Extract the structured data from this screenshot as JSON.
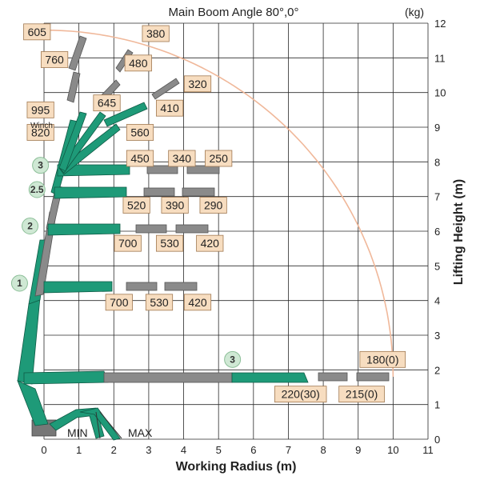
{
  "chart_data": {
    "type": "table",
    "title": "Main Boom Angle 80°,0°",
    "unit": "(kg)",
    "xlabel": "Working Radius (m)",
    "ylabel": "Lifting Height (m)",
    "xlim": [
      0,
      11
    ],
    "ylim": [
      0,
      12
    ],
    "x_ticks": [
      "0",
      "1",
      "2",
      "3",
      "4",
      "5",
      "6",
      "7",
      "8",
      "9",
      "10",
      "11"
    ],
    "y_ticks": [
      "0",
      "1",
      "2",
      "3",
      "4",
      "5",
      "6",
      "7",
      "8",
      "9",
      "10",
      "11",
      "12"
    ],
    "grid": true,
    "min_label": "MIN",
    "max_label": "MAX",
    "winch_label": "Winch",
    "boom_extension_markers": [
      {
        "label": "1",
        "x": -0.7,
        "y": 4.5
      },
      {
        "label": "2",
        "x": -0.4,
        "y": 6.15
      },
      {
        "label": "2.5",
        "x": -0.2,
        "y": 7.2
      },
      {
        "label": "3",
        "x": -0.1,
        "y": 7.9
      },
      {
        "label": "3",
        "x": 5.4,
        "y": 2.3
      }
    ],
    "rated_loads": [
      {
        "label": "605",
        "x": -0.2,
        "y": 11.75
      },
      {
        "label": "380",
        "x": 3.2,
        "y": 11.7
      },
      {
        "label": "760",
        "x": 0.3,
        "y": 10.95
      },
      {
        "label": "480",
        "x": 2.7,
        "y": 10.85
      },
      {
        "label": "320",
        "x": 4.4,
        "y": 10.25
      },
      {
        "label": "645",
        "x": 1.8,
        "y": 9.7
      },
      {
        "label": "410",
        "x": 3.6,
        "y": 9.55
      },
      {
        "label": "995",
        "x": -0.1,
        "y": 9.5
      },
      {
        "label": "820",
        "x": -0.1,
        "y": 8.85
      },
      {
        "label": "560",
        "x": 2.75,
        "y": 8.85
      },
      {
        "label": "450",
        "x": 2.75,
        "y": 8.1
      },
      {
        "label": "340",
        "x": 3.95,
        "y": 8.1
      },
      {
        "label": "250",
        "x": 5.0,
        "y": 8.1
      },
      {
        "label": "520",
        "x": 2.65,
        "y": 6.75
      },
      {
        "label": "390",
        "x": 3.75,
        "y": 6.75
      },
      {
        "label": "290",
        "x": 4.85,
        "y": 6.75
      },
      {
        "label": "700",
        "x": 2.4,
        "y": 5.65
      },
      {
        "label": "530",
        "x": 3.6,
        "y": 5.65
      },
      {
        "label": "420",
        "x": 4.75,
        "y": 5.65
      },
      {
        "label": "700",
        "x": 2.15,
        "y": 3.95
      },
      {
        "label": "530",
        "x": 3.3,
        "y": 3.95
      },
      {
        "label": "420",
        "x": 4.4,
        "y": 3.95
      },
      {
        "label": "220(30)",
        "x": 7.35,
        "y": 1.3
      },
      {
        "label": "215(0)",
        "x": 9.1,
        "y": 1.3
      },
      {
        "label": "180(0)",
        "x": 9.7,
        "y": 2.3
      }
    ],
    "working_range_arc": {
      "center_x": 0,
      "center_y": 1.8,
      "radius": 10
    }
  },
  "colors": {
    "boom": "#1e9a78",
    "extension": "#8a8a8a",
    "label_fill": "#f7ddc0",
    "arc": "#f0b89a",
    "marker": "#cfe8d4"
  }
}
